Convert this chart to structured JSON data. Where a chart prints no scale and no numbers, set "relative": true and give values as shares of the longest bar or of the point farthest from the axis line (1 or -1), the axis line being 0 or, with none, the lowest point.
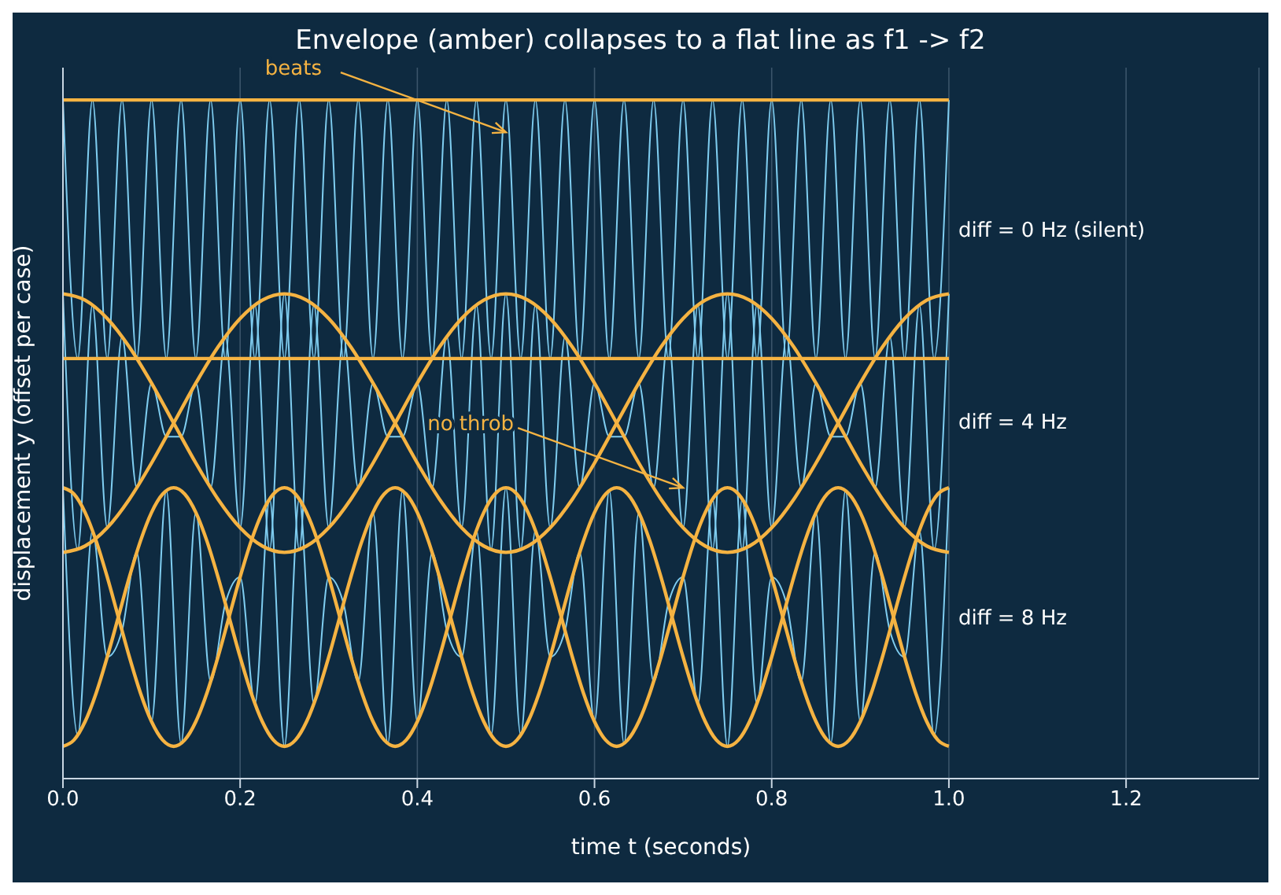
{
  "chart_data": {
    "type": "line",
    "title": "Envelope (amber) collapses to a flat line as f1 -> f2",
    "xlabel": "time  t  (seconds)",
    "ylabel": "displacement  y  (offset per case)",
    "relative": true,
    "xlim": [
      0,
      1.35
    ],
    "xticks": [
      {
        "value": 0,
        "label": "0.0"
      },
      0.2,
      0.4,
      0.6,
      0.8,
      {
        "value": 1,
        "label": "1.0"
      },
      1.2
    ],
    "grid": "x",
    "tick_labels": "x",
    "x": [
      0,
      0.0167,
      0.0333,
      0.05,
      0.0667,
      0.0833,
      0.1,
      0.1167,
      0.1333,
      0.15,
      0.1667,
      0.1833,
      0.2,
      0.2167,
      0.2333,
      0.25,
      0.2667,
      0.2833,
      0.3,
      0.3167,
      0.3333,
      0.35,
      0.3667,
      0.3833,
      0.4,
      0.4167,
      0.4333,
      0.45,
      0.4667,
      0.4833,
      0.5,
      0.5167,
      0.5333,
      0.55,
      0.5667,
      0.5833,
      0.6,
      0.6167,
      0.6333,
      0.65,
      0.6667,
      0.6833,
      0.7,
      0.7167,
      0.7333,
      0.75,
      0.7667,
      0.7833,
      0.8,
      0.8167,
      0.8333,
      0.85,
      0.8667,
      0.8833,
      0.9,
      0.9167,
      0.9333,
      0.95,
      0.9667,
      0.9833,
      1
    ],
    "series": [
      {
        "name": "diff = 0 Hz (silent)",
        "color": "#7fcdf0",
        "values": [
          1,
          0.619,
          1,
          0.619,
          1,
          0.619,
          1,
          0.619,
          1,
          0.619,
          1,
          0.619,
          1,
          0.619,
          1,
          0.619,
          1,
          0.619,
          1,
          0.619,
          1,
          0.619,
          1,
          0.619,
          1,
          0.619,
          1,
          0.619,
          1,
          0.619,
          1,
          0.619,
          1,
          0.619,
          1,
          0.619,
          1,
          0.619,
          1,
          0.619,
          1,
          0.619,
          1,
          0.619,
          1,
          0.619,
          1,
          0.619,
          1,
          0.619,
          1,
          0.619,
          1,
          0.619,
          1,
          0.619,
          1,
          0.619,
          1,
          0.619,
          1
        ]
      },
      {
        "name": "diff = 4 Hz",
        "color": "#7fcdf0",
        "values": [
          0.7143,
          0.3375,
          0.6978,
          0.3697,
          0.6512,
          0.4286,
          0.5827,
          0.5039,
          0.5039,
          0.5827,
          0.4286,
          0.6512,
          0.3697,
          0.6978,
          0.3375,
          0.7143,
          0.3375,
          0.6978,
          0.3697,
          0.6512,
          0.4286,
          0.5827,
          0.5039,
          0.5039,
          0.5827,
          0.4286,
          0.6512,
          0.3697,
          0.6978,
          0.3375,
          0.7143,
          0.3375,
          0.6978,
          0.3697,
          0.6512,
          0.4286,
          0.5827,
          0.5039,
          0.5039,
          0.5827,
          0.4286,
          0.6512,
          0.3697,
          0.6978,
          0.3375,
          0.7143,
          0.3375,
          0.6978,
          0.3697,
          0.6512,
          0.4286,
          0.5827,
          0.5039,
          0.5039,
          0.5827,
          0.4286,
          0.6512,
          0.3697,
          0.6978,
          0.3375,
          0.7143
        ]
      },
      {
        "name": "diff = 8 Hz",
        "color": "#7fcdf0",
        "values": [
          0.4286,
          0.0641,
          0.3655,
          0.1792,
          0.2182,
          0.3333,
          0.084,
          0.4244,
          0.0518,
          0.3922,
          0.1429,
          0.258,
          0.297,
          0.1107,
          0.4121,
          0.0476,
          0.4121,
          0.1107,
          0.297,
          0.258,
          0.1429,
          0.3922,
          0.0518,
          0.4244,
          0.084,
          0.3333,
          0.2182,
          0.1792,
          0.3655,
          0.0641,
          0.4286,
          0.0641,
          0.3655,
          0.1792,
          0.2182,
          0.3333,
          0.084,
          0.4244,
          0.0518,
          0.3922,
          0.1429,
          0.258,
          0.297,
          0.1107,
          0.4121,
          0.0476,
          0.4121,
          0.1107,
          0.297,
          0.258,
          0.1429,
          0.3922,
          0.0518,
          0.4244,
          0.084,
          0.3333,
          0.2182,
          0.1792,
          0.3655,
          0.0641,
          0.4286
        ]
      },
      {
        "color": "#f5b342",
        "x": [
          0,
          1
        ],
        "values": [
          1,
          1
        ]
      },
      {
        "color": "#f5b342",
        "x": [
          0,
          1
        ],
        "values": [
          0.619,
          0.619
        ]
      },
      {
        "color": "#f5b342",
        "x": [
          0,
          0.025,
          0.05,
          0.075,
          0.1,
          0.125,
          0.15,
          0.175,
          0.2,
          0.225,
          0.25,
          0.275,
          0.3,
          0.325,
          0.35,
          0.375,
          0.4,
          0.425,
          0.45,
          0.475,
          0.5,
          0.525,
          0.55,
          0.575,
          0.6,
          0.625,
          0.65,
          0.675,
          0.7,
          0.725,
          0.75,
          0.775,
          0.8,
          0.825,
          0.85,
          0.875,
          0.9,
          0.925,
          0.95,
          0.975,
          1
        ],
        "values": [
          0.7143,
          0.705,
          0.6779,
          0.6358,
          0.5827,
          0.5238,
          0.465,
          0.4118,
          0.3697,
          0.3427,
          0.3333,
          0.3427,
          0.3697,
          0.4118,
          0.465,
          0.5238,
          0.5827,
          0.6358,
          0.6779,
          0.705,
          0.7143,
          0.705,
          0.6779,
          0.6358,
          0.5827,
          0.5238,
          0.465,
          0.4118,
          0.3697,
          0.3427,
          0.3333,
          0.3427,
          0.3697,
          0.4118,
          0.465,
          0.5238,
          0.5827,
          0.6358,
          0.6779,
          0.705,
          0.7143
        ]
      },
      {
        "color": "#f5b342",
        "x": [
          0,
          0.025,
          0.05,
          0.075,
          0.1,
          0.125,
          0.15,
          0.175,
          0.2,
          0.225,
          0.25,
          0.275,
          0.3,
          0.325,
          0.35,
          0.375,
          0.4,
          0.425,
          0.45,
          0.475,
          0.5,
          0.525,
          0.55,
          0.575,
          0.6,
          0.625,
          0.65,
          0.675,
          0.7,
          0.725,
          0.75,
          0.775,
          0.8,
          0.825,
          0.85,
          0.875,
          0.9,
          0.925,
          0.95,
          0.975,
          1
        ],
        "values": [
          0.3333,
          0.3427,
          0.3697,
          0.4118,
          0.465,
          0.5238,
          0.5827,
          0.6358,
          0.6779,
          0.705,
          0.7143,
          0.705,
          0.6779,
          0.6358,
          0.5827,
          0.5238,
          0.465,
          0.4118,
          0.3697,
          0.3427,
          0.3333,
          0.3427,
          0.3697,
          0.4118,
          0.465,
          0.5238,
          0.5827,
          0.6358,
          0.6779,
          0.705,
          0.7143,
          0.705,
          0.6779,
          0.6358,
          0.5827,
          0.5238,
          0.465,
          0.4118,
          0.3697,
          0.3427,
          0.3333
        ]
      },
      {
        "color": "#f5b342",
        "x": [
          0,
          0.0125,
          0.025,
          0.0375,
          0.05,
          0.0625,
          0.075,
          0.0875,
          0.1,
          0.1125,
          0.125,
          0.1375,
          0.15,
          0.1625,
          0.175,
          0.1875,
          0.2,
          0.2125,
          0.225,
          0.2375,
          0.25,
          0.2625,
          0.275,
          0.2875,
          0.3,
          0.3125,
          0.325,
          0.3375,
          0.35,
          0.3625,
          0.375,
          0.3875,
          0.4,
          0.4125,
          0.425,
          0.4375,
          0.45,
          0.4625,
          0.475,
          0.4875,
          0.5,
          0.5125,
          0.525,
          0.5375,
          0.55,
          0.5625,
          0.575,
          0.5875,
          0.6,
          0.6125,
          0.625,
          0.6375,
          0.65,
          0.6625,
          0.675,
          0.6875,
          0.7,
          0.7125,
          0.725,
          0.7375,
          0.75,
          0.7625,
          0.775,
          0.7875,
          0.8,
          0.8125,
          0.825,
          0.8375,
          0.85,
          0.8625,
          0.875,
          0.8875,
          0.9,
          0.9125,
          0.925,
          0.9375,
          0.95,
          0.9625,
          0.975,
          0.9875,
          1
        ],
        "values": [
          0.4286,
          0.4192,
          0.3922,
          0.3501,
          0.297,
          0.2381,
          0.1792,
          0.1261,
          0.084,
          0.0569,
          0.0476,
          0.0569,
          0.084,
          0.1261,
          0.1792,
          0.2381,
          0.297,
          0.3501,
          0.3922,
          0.4192,
          0.4286,
          0.4192,
          0.3922,
          0.3501,
          0.297,
          0.2381,
          0.1792,
          0.1261,
          0.084,
          0.0569,
          0.0476,
          0.0569,
          0.084,
          0.1261,
          0.1792,
          0.2381,
          0.297,
          0.3501,
          0.3922,
          0.4192,
          0.4286,
          0.4192,
          0.3922,
          0.3501,
          0.297,
          0.2381,
          0.1792,
          0.1261,
          0.084,
          0.0569,
          0.0476,
          0.0569,
          0.084,
          0.1261,
          0.1792,
          0.2381,
          0.297,
          0.3501,
          0.3922,
          0.4192,
          0.4286,
          0.4192,
          0.3922,
          0.3501,
          0.297,
          0.2381,
          0.1792,
          0.1261,
          0.084,
          0.0569,
          0.0476,
          0.0569,
          0.084,
          0.1261,
          0.1792,
          0.2381,
          0.297,
          0.3501,
          0.3922,
          0.4192,
          0.4286
        ]
      },
      {
        "color": "#f5b342",
        "x": [
          0,
          0.0125,
          0.025,
          0.0375,
          0.05,
          0.0625,
          0.075,
          0.0875,
          0.1,
          0.1125,
          0.125,
          0.1375,
          0.15,
          0.1625,
          0.175,
          0.1875,
          0.2,
          0.2125,
          0.225,
          0.2375,
          0.25,
          0.2625,
          0.275,
          0.2875,
          0.3,
          0.3125,
          0.325,
          0.3375,
          0.35,
          0.3625,
          0.375,
          0.3875,
          0.4,
          0.4125,
          0.425,
          0.4375,
          0.45,
          0.4625,
          0.475,
          0.4875,
          0.5,
          0.5125,
          0.525,
          0.5375,
          0.55,
          0.5625,
          0.575,
          0.5875,
          0.6,
          0.6125,
          0.625,
          0.6375,
          0.65,
          0.6625,
          0.675,
          0.6875,
          0.7,
          0.7125,
          0.725,
          0.7375,
          0.75,
          0.7625,
          0.775,
          0.7875,
          0.8,
          0.8125,
          0.825,
          0.8375,
          0.85,
          0.8625,
          0.875,
          0.8875,
          0.9,
          0.9125,
          0.925,
          0.9375,
          0.95,
          0.9625,
          0.975,
          0.9875,
          1
        ],
        "values": [
          0.0476,
          0.0569,
          0.084,
          0.1261,
          0.1792,
          0.2381,
          0.297,
          0.3501,
          0.3922,
          0.4192,
          0.4286,
          0.4192,
          0.3922,
          0.3501,
          0.297,
          0.2381,
          0.1792,
          0.1261,
          0.084,
          0.0569,
          0.0476,
          0.0569,
          0.084,
          0.1261,
          0.1792,
          0.2381,
          0.297,
          0.3501,
          0.3922,
          0.4192,
          0.4286,
          0.4192,
          0.3922,
          0.3501,
          0.297,
          0.2381,
          0.1792,
          0.1261,
          0.084,
          0.0569,
          0.0476,
          0.0569,
          0.084,
          0.1261,
          0.1792,
          0.2381,
          0.297,
          0.3501,
          0.3922,
          0.4192,
          0.4286,
          0.4192,
          0.3922,
          0.3501,
          0.297,
          0.2381,
          0.1792,
          0.1261,
          0.084,
          0.0569,
          0.0476,
          0.0569,
          0.084,
          0.1261,
          0.1792,
          0.2381,
          0.297,
          0.3501,
          0.3922,
          0.4192,
          0.4286,
          0.4192,
          0.3922,
          0.3501,
          0.297,
          0.2381,
          0.1792,
          0.1261,
          0.084,
          0.0569,
          0.0476
        ]
      }
    ],
    "annotations": [
      {
        "text": "beats",
        "x": 0.5,
        "y": 0.9524
      },
      {
        "text": "no throb",
        "x": 0.7,
        "y": 0.4286
      }
    ]
  }
}
